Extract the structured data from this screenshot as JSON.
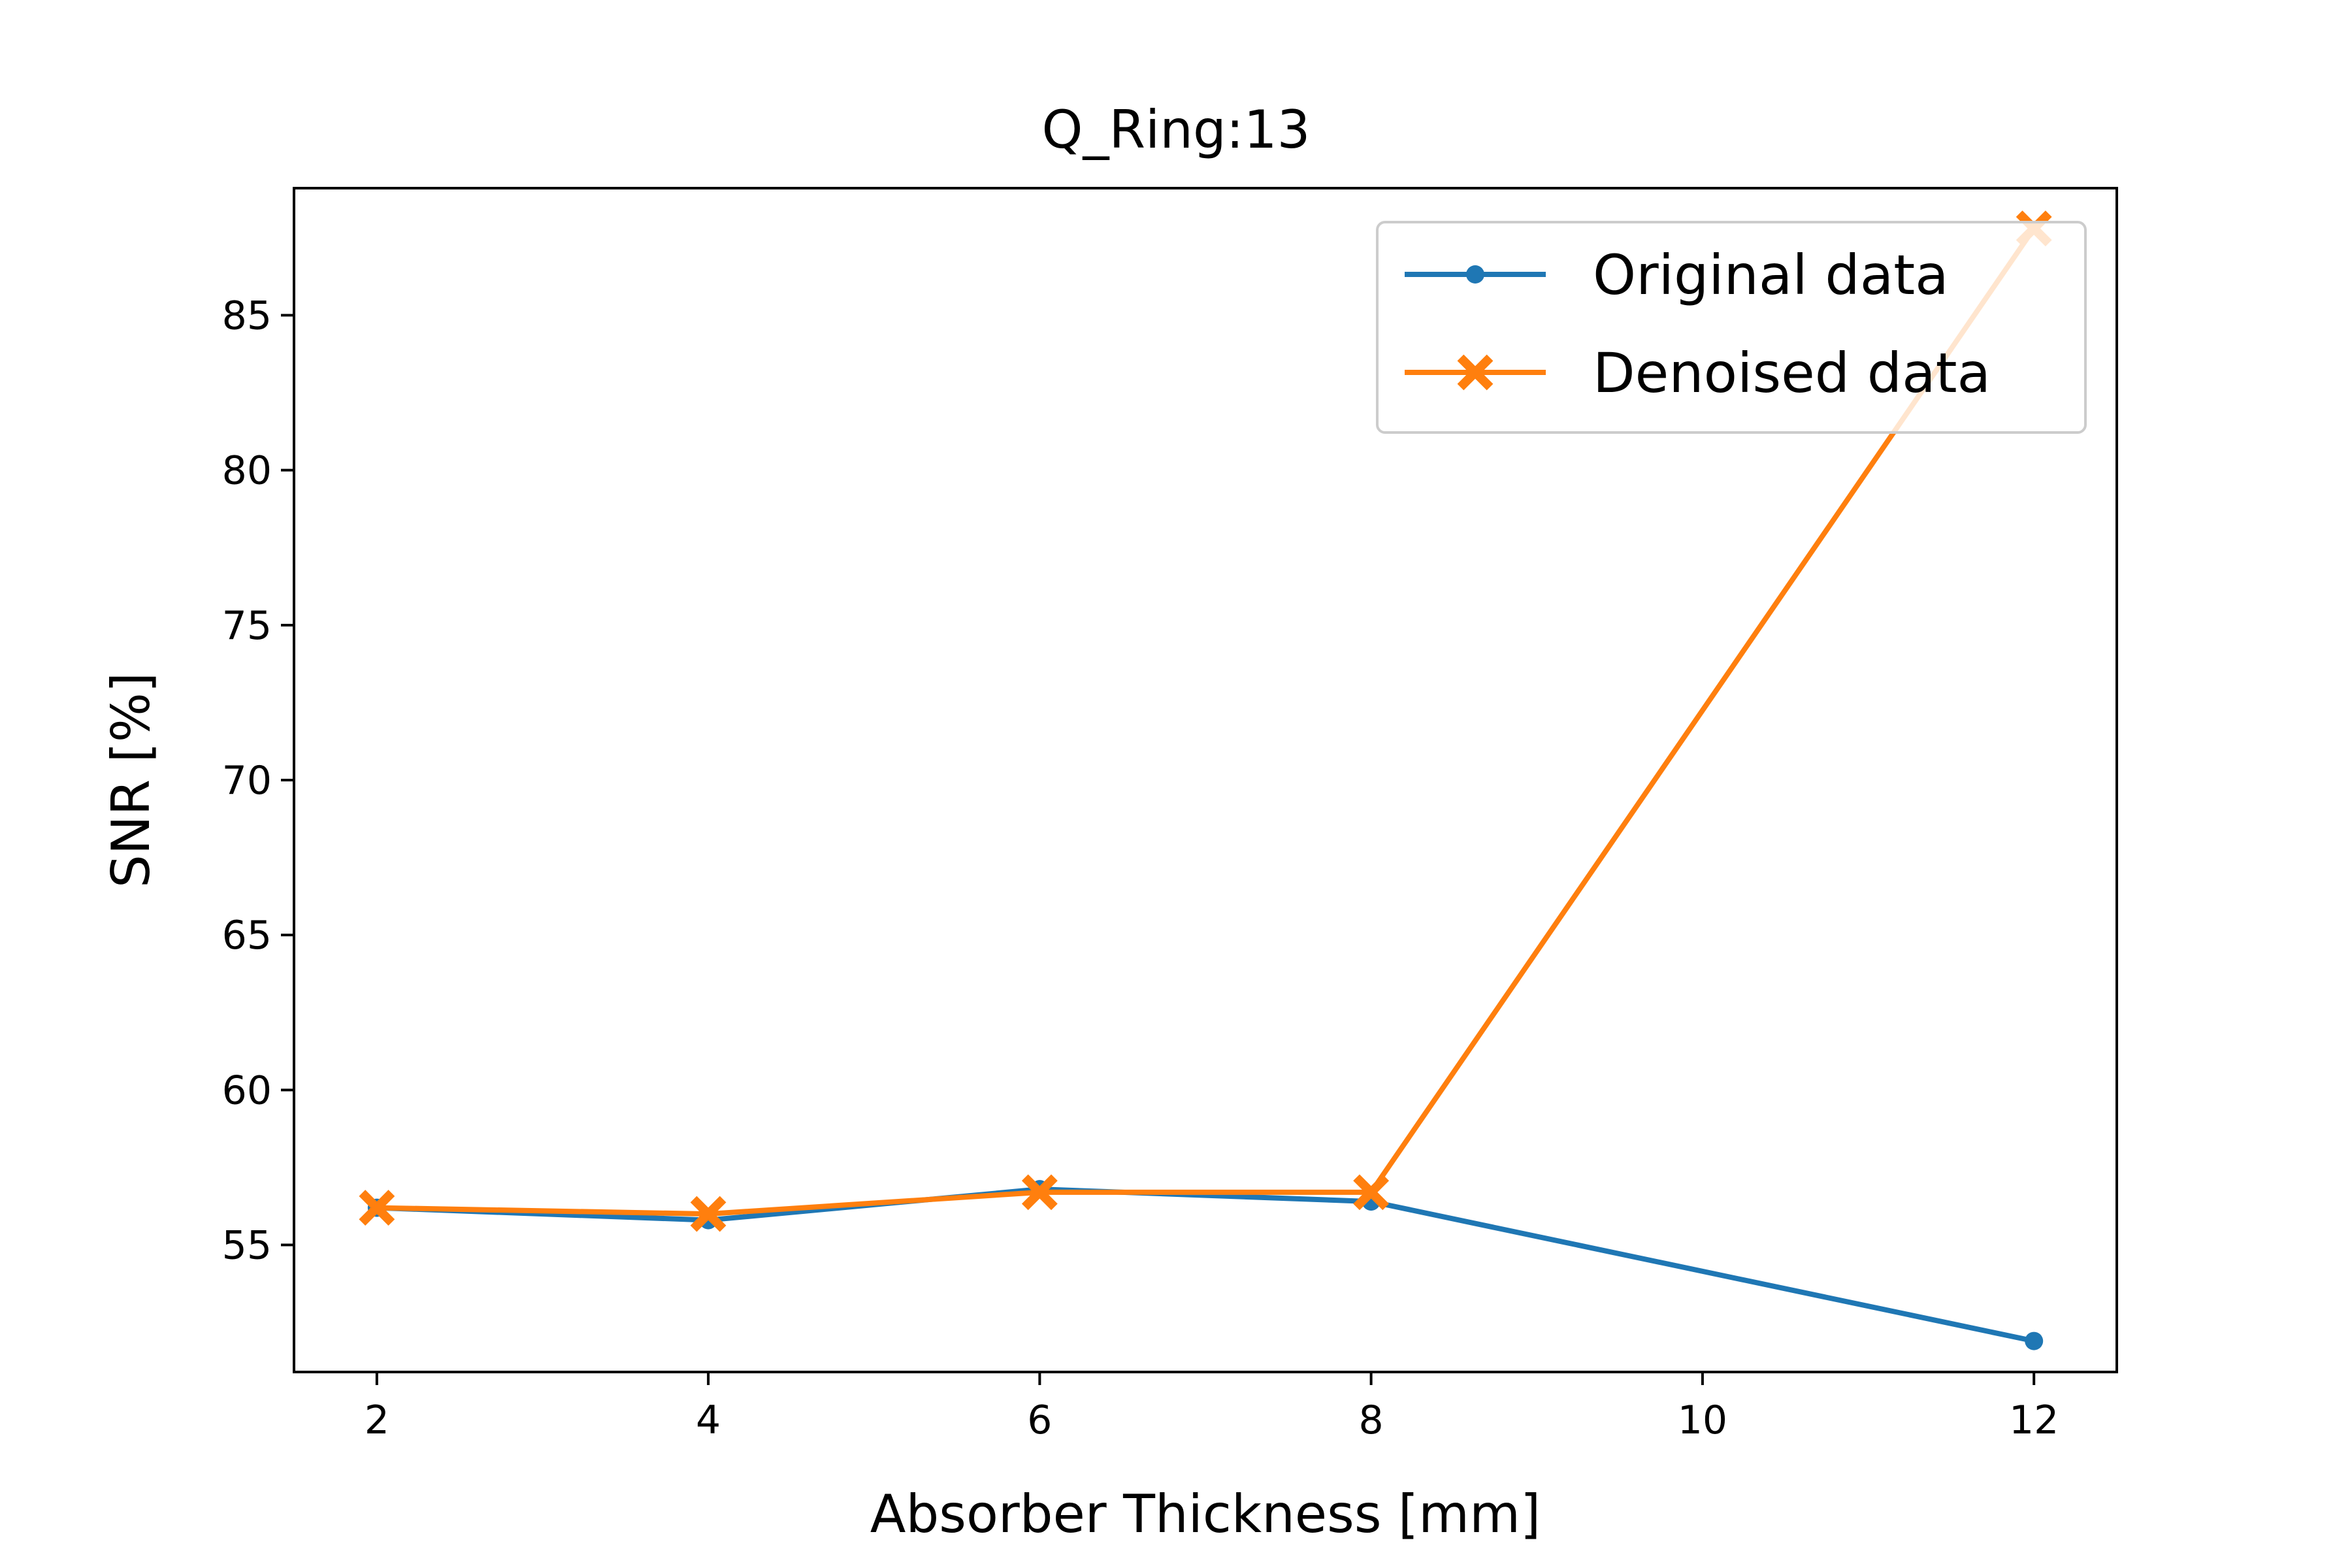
{
  "chart_data": {
    "type": "line",
    "title": "Q_Ring:13",
    "xlabel": "Absorber Thickness [mm]",
    "ylabel": "SNR [%]",
    "x": [
      2,
      4,
      6,
      8,
      12
    ],
    "xlim": [
      1.5,
      12.5
    ],
    "ylim": [
      50.9,
      89.1
    ],
    "xticks": [
      2,
      4,
      6,
      8,
      10,
      12
    ],
    "yticks": [
      55,
      60,
      65,
      70,
      75,
      80,
      85
    ],
    "grid": false,
    "legend_position": "upper right",
    "series": [
      {
        "name": "Original data",
        "values": [
          56.2,
          55.8,
          56.8,
          56.4,
          51.9
        ],
        "color": "#1f77b4",
        "marker": "dot"
      },
      {
        "name": "Denoised data",
        "values": [
          56.2,
          56.0,
          56.7,
          56.7,
          87.8
        ],
        "color": "#ff7f0e",
        "marker": "filled-x"
      }
    ]
  }
}
